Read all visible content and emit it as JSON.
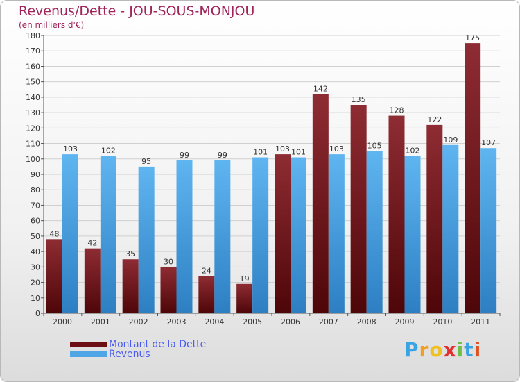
{
  "header": {
    "title": "Revenus/Dette - JOU-SOUS-MONJOU",
    "subtitle": "(en milliers d'€)"
  },
  "chart_data": {
    "type": "bar",
    "categories": [
      "2000",
      "2001",
      "2002",
      "2003",
      "2004",
      "2005",
      "2006",
      "2007",
      "2008",
      "2009",
      "2010",
      "2011"
    ],
    "series": [
      {
        "name": "Montant de la Dette",
        "color": "#7a1f24",
        "values": [
          48,
          42,
          35,
          30,
          24,
          19,
          103,
          142,
          135,
          128,
          122,
          175
        ]
      },
      {
        "name": "Revenus",
        "color": "#4ea6e6",
        "values": [
          103,
          102,
          95,
          99,
          99,
          101,
          101,
          103,
          105,
          102,
          109,
          107
        ]
      }
    ],
    "ylim": [
      0,
      180
    ],
    "ytick_step": 10,
    "grid": true,
    "legend_position": "bottom-left"
  },
  "legend": {
    "items": [
      {
        "label": "Montant de la Dette",
        "color": "#6b0f14"
      },
      {
        "label": "Revenus",
        "color": "#4ea6e6"
      }
    ]
  },
  "logo": {
    "letters": [
      "P",
      "r",
      "o",
      "x",
      "i",
      "t",
      "i"
    ],
    "colors": [
      "#3aa3e3",
      "#f0a020",
      "#f0c020",
      "#e03030",
      "#6cc04a",
      "#3aa3e3",
      "#e05020"
    ]
  }
}
